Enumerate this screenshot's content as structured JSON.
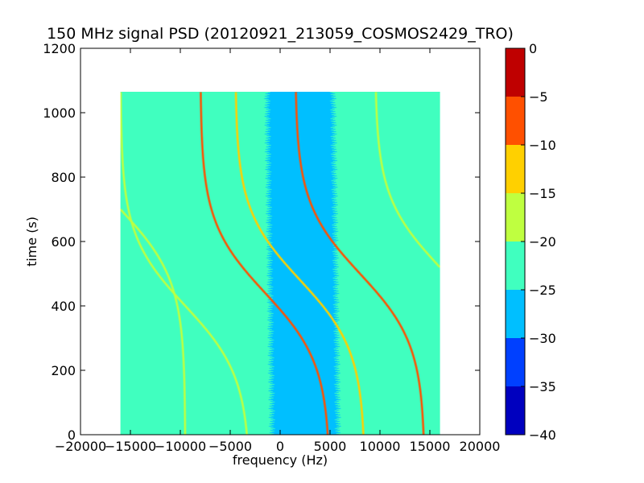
{
  "chart_data": {
    "type": "heatmap",
    "title": "150 MHz signal PSD (20120921_213059_COSMOS2429_TRO)",
    "xlabel": "frequency (Hz)",
    "ylabel": "time (s)",
    "xlim": [
      -20000,
      20000
    ],
    "ylim": [
      0,
      1200
    ],
    "x_ticks": [
      -20000,
      -15000,
      -10000,
      -5000,
      0,
      5000,
      10000,
      15000,
      20000
    ],
    "x_tick_labels": [
      "−20000",
      "−15000",
      "−10000",
      "−5000",
      "0",
      "5000",
      "10000",
      "15000",
      "20000"
    ],
    "y_ticks": [
      0,
      200,
      400,
      600,
      800,
      1000,
      1200
    ],
    "y_tick_labels": [
      "0",
      "200",
      "400",
      "600",
      "800",
      "1000",
      "1200"
    ],
    "data_extent": {
      "freq_min": -16000,
      "freq_max": 16000,
      "time_min": 0,
      "time_max": 1065
    },
    "background_level": -22.5,
    "quiet_band": {
      "center_at_time0": 2500,
      "center_at_time1065": 2000,
      "half_width": 3000,
      "level": -27.5
    },
    "doppler_traces": [
      {
        "center_freq": -9500,
        "center_time": 400,
        "amplitude": 6500,
        "level": -17.5
      },
      {
        "center_freq": -16000,
        "center_time": 700,
        "amplitude": 6500,
        "level": -17.5
      },
      {
        "center_freq": -1500,
        "center_time": 440,
        "amplitude": 6500,
        "level": -7.5
      },
      {
        "center_freq": 2000,
        "center_time": 480,
        "amplitude": 6500,
        "level": -12.5
      },
      {
        "center_freq": 8000,
        "center_time": 500,
        "amplitude": 6500,
        "level": -7.5
      },
      {
        "center_freq": 16000,
        "center_time": 520,
        "amplitude": 6500,
        "level": -17.5
      }
    ],
    "colorbar": {
      "vmin": -40,
      "vmax": 0,
      "ticks": [
        0,
        -5,
        -10,
        -15,
        -20,
        -25,
        -30,
        -35,
        -40
      ],
      "tick_labels": [
        "0",
        "−5",
        "−10",
        "−15",
        "−20",
        "−25",
        "−30",
        "−35",
        "−40"
      ],
      "levels": [
        {
          "from": -40,
          "to": -35,
          "color": "#0000bf"
        },
        {
          "from": -35,
          "to": -30,
          "color": "#0040ff"
        },
        {
          "from": -30,
          "to": -25,
          "color": "#00bfff"
        },
        {
          "from": -25,
          "to": -20,
          "color": "#40ffbf"
        },
        {
          "from": -20,
          "to": -15,
          "color": "#bfff40"
        },
        {
          "from": -15,
          "to": -10,
          "color": "#ffd000"
        },
        {
          "from": -10,
          "to": -5,
          "color": "#ff5000"
        },
        {
          "from": -5,
          "to": 0,
          "color": "#bf0000"
        }
      ]
    }
  }
}
